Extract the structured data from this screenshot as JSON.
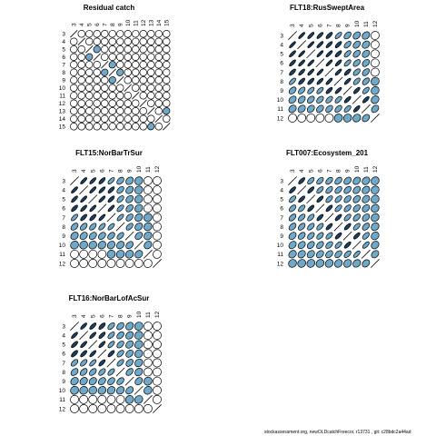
{
  "footer": "stockassessment.org,  newOLDcatchFreecor,  r13731 ,  git:  c28bdc2a44ad",
  "colors": {
    "positive": "#6fa8c8",
    "negative": "#1f3f5f",
    "outline": "#000000",
    "empty": "#ffffff"
  },
  "chart_data": [
    {
      "type": "heatmap",
      "title": "Residual catch",
      "ages": [
        "3",
        "4",
        "5",
        "6",
        "7",
        "8",
        "9",
        "10",
        "11",
        "12",
        "13",
        "14",
        "15"
      ],
      "correlations": [
        [
          1,
          0.05,
          0.08,
          0.06,
          0.04,
          0.08,
          0.1,
          0.05,
          0.1,
          0.05,
          0.05,
          0.1,
          0.05
        ],
        [
          0.05,
          1,
          0.05,
          0.05,
          0.05,
          0.05,
          0.1,
          0.05,
          0.1,
          0.05,
          0.05,
          0.05,
          0.05
        ],
        [
          0.08,
          0.05,
          1,
          0.15,
          0.08,
          0.05,
          0.05,
          0.05,
          0.05,
          0.1,
          0.05,
          0.05,
          0.05
        ],
        [
          0.06,
          0.05,
          0.15,
          1,
          0.05,
          0.05,
          0.05,
          0.05,
          0.05,
          0.05,
          0.1,
          0.05,
          0.05
        ],
        [
          0.04,
          0.05,
          0.08,
          0.05,
          1,
          0.15,
          0.05,
          0.05,
          0.05,
          0.05,
          0.05,
          0.05,
          0.05
        ],
        [
          0.08,
          0.05,
          0.05,
          0.05,
          0.15,
          1,
          0.15,
          0.05,
          0.05,
          0.05,
          0.05,
          0.05,
          0.1
        ],
        [
          0.1,
          0.1,
          0.05,
          0.05,
          0.05,
          0.15,
          1,
          0.05,
          0.05,
          0.05,
          0.05,
          0.05,
          0.05
        ],
        [
          0.05,
          0.05,
          0.05,
          0.05,
          0.05,
          0.05,
          0.05,
          1,
          0.05,
          0.05,
          0.05,
          0.1,
          0.05
        ],
        [
          0.1,
          0.1,
          0.05,
          0.05,
          0.05,
          0.05,
          0.05,
          0.05,
          1,
          0.05,
          0.05,
          0.05,
          0.05
        ],
        [
          0.05,
          0.05,
          0.1,
          0.05,
          0.05,
          0.05,
          0.05,
          0.05,
          0.05,
          1,
          0.05,
          0.05,
          0.05
        ],
        [
          0.05,
          0.05,
          0.05,
          0.1,
          0.05,
          0.05,
          0.05,
          0.05,
          0.05,
          0.05,
          1,
          0.05,
          0.15
        ],
        [
          0.1,
          0.05,
          0.05,
          0.05,
          0.05,
          0.05,
          0.05,
          0.1,
          0.05,
          0.05,
          0.05,
          1,
          0.05
        ],
        [
          0.05,
          0.05,
          0.05,
          0.05,
          0.05,
          0.1,
          0.05,
          0.05,
          0.05,
          0.05,
          0.15,
          0.05,
          1
        ]
      ]
    },
    {
      "type": "heatmap",
      "title": "FLT18:RusSweptArea",
      "ages": [
        "3",
        "4",
        "5",
        "6",
        "7",
        "8",
        "9",
        "10",
        "11",
        "12"
      ],
      "correlations": [
        [
          1,
          0.92,
          0.9,
          0.88,
          0.85,
          0.8,
          0.6,
          0.5,
          0.4,
          0.1
        ],
        [
          0.92,
          1,
          0.92,
          0.9,
          0.88,
          0.85,
          0.7,
          0.55,
          0.45,
          0.1
        ],
        [
          0.9,
          0.92,
          1,
          0.92,
          0.9,
          0.85,
          0.75,
          0.6,
          0.5,
          0.1
        ],
        [
          0.88,
          0.9,
          0.92,
          1,
          0.92,
          0.88,
          0.8,
          0.65,
          0.55,
          0.1
        ],
        [
          0.85,
          0.88,
          0.9,
          0.92,
          1,
          0.9,
          0.85,
          0.7,
          0.6,
          0.1
        ],
        [
          0.8,
          0.85,
          0.85,
          0.88,
          0.9,
          1,
          0.88,
          0.75,
          0.65,
          0.15
        ],
        [
          0.6,
          0.7,
          0.75,
          0.8,
          0.85,
          0.88,
          1,
          0.85,
          0.75,
          0.2
        ],
        [
          0.5,
          0.55,
          0.6,
          0.65,
          0.7,
          0.75,
          0.85,
          1,
          0.85,
          0.3
        ],
        [
          0.4,
          0.45,
          0.5,
          0.55,
          0.6,
          0.65,
          0.75,
          0.85,
          1,
          0.5
        ],
        [
          0.1,
          0.1,
          0.1,
          0.1,
          0.1,
          0.15,
          0.2,
          0.3,
          0.5,
          1
        ]
      ]
    },
    {
      "type": "heatmap",
      "title": "FLT15:NorBarTrSur",
      "ages": [
        "3",
        "4",
        "5",
        "6",
        "7",
        "8",
        "9",
        "10",
        "11",
        "12"
      ],
      "correlations": [
        [
          1,
          0.9,
          0.88,
          0.85,
          0.8,
          0.6,
          0.4,
          0.2,
          0.1,
          0.05
        ],
        [
          0.9,
          1,
          0.9,
          0.88,
          0.85,
          0.65,
          0.45,
          0.2,
          0.1,
          0.05
        ],
        [
          0.88,
          0.9,
          1,
          0.9,
          0.85,
          0.7,
          0.5,
          0.25,
          0.1,
          0.05
        ],
        [
          0.85,
          0.88,
          0.9,
          1,
          0.9,
          0.75,
          0.55,
          0.3,
          0.1,
          0.05
        ],
        [
          0.8,
          0.85,
          0.85,
          0.9,
          1,
          0.8,
          0.6,
          0.35,
          0.15,
          0.05
        ],
        [
          0.6,
          0.65,
          0.7,
          0.75,
          0.8,
          1,
          0.7,
          0.4,
          0.2,
          0.05
        ],
        [
          0.4,
          0.45,
          0.5,
          0.55,
          0.6,
          0.7,
          1,
          0.5,
          0.25,
          0.05
        ],
        [
          0.2,
          0.2,
          0.25,
          0.3,
          0.35,
          0.4,
          0.5,
          1,
          0.35,
          0.1
        ],
        [
          0.1,
          0.1,
          0.1,
          0.1,
          0.15,
          0.2,
          0.25,
          0.35,
          1,
          0.1
        ],
        [
          0.05,
          0.05,
          0.05,
          0.05,
          0.05,
          0.05,
          0.05,
          0.1,
          0.1,
          1
        ]
      ]
    },
    {
      "type": "heatmap",
      "title": "FLT007:Ecosystem_201",
      "ages": [
        "3",
        "4",
        "5",
        "6",
        "7",
        "8",
        "9",
        "10",
        "11",
        "12"
      ],
      "correlations": [
        [
          1,
          0.85,
          0.75,
          0.7,
          0.65,
          0.6,
          0.5,
          0.45,
          0.35,
          0.2
        ],
        [
          0.85,
          1,
          0.85,
          0.75,
          0.7,
          0.65,
          0.6,
          0.5,
          0.4,
          0.2
        ],
        [
          0.75,
          0.85,
          1,
          0.85,
          0.75,
          0.7,
          0.65,
          0.55,
          0.45,
          0.2
        ],
        [
          0.7,
          0.75,
          0.85,
          1,
          0.85,
          0.75,
          0.7,
          0.6,
          0.5,
          0.25
        ],
        [
          0.65,
          0.7,
          0.75,
          0.85,
          1,
          0.85,
          0.75,
          0.65,
          0.55,
          0.25
        ],
        [
          0.6,
          0.65,
          0.7,
          0.75,
          0.85,
          1,
          0.85,
          0.75,
          0.6,
          0.3
        ],
        [
          0.5,
          0.6,
          0.65,
          0.7,
          0.75,
          0.85,
          1,
          0.85,
          0.7,
          0.3
        ],
        [
          0.45,
          0.5,
          0.55,
          0.6,
          0.65,
          0.75,
          0.85,
          1,
          0.8,
          0.35
        ],
        [
          0.35,
          0.4,
          0.45,
          0.5,
          0.55,
          0.6,
          0.7,
          0.8,
          1,
          0.45
        ],
        [
          0.2,
          0.2,
          0.2,
          0.25,
          0.25,
          0.3,
          0.3,
          0.35,
          0.45,
          1
        ]
      ]
    },
    {
      "type": "heatmap",
      "title": "FLT16:NorBarLofAcSur",
      "ages": [
        "3",
        "4",
        "5",
        "6",
        "7",
        "8",
        "9",
        "10",
        "11",
        "12"
      ],
      "correlations": [
        [
          1,
          0.88,
          0.85,
          0.82,
          0.7,
          0.55,
          0.35,
          0.15,
          0.05,
          0.05
        ],
        [
          0.88,
          1,
          0.88,
          0.85,
          0.75,
          0.6,
          0.4,
          0.2,
          0.05,
          0.05
        ],
        [
          0.85,
          0.88,
          1,
          0.88,
          0.8,
          0.65,
          0.45,
          0.2,
          0.05,
          0.05
        ],
        [
          0.82,
          0.85,
          0.88,
          1,
          0.85,
          0.7,
          0.5,
          0.25,
          0.05,
          0.05
        ],
        [
          0.7,
          0.75,
          0.8,
          0.85,
          1,
          0.75,
          0.55,
          0.3,
          0.1,
          0.05
        ],
        [
          0.55,
          0.6,
          0.65,
          0.7,
          0.75,
          1,
          0.6,
          0.35,
          0.1,
          0.05
        ],
        [
          0.35,
          0.4,
          0.45,
          0.5,
          0.55,
          0.6,
          1,
          0.45,
          0.15,
          0.05
        ],
        [
          0.15,
          0.2,
          0.2,
          0.25,
          0.3,
          0.35,
          0.45,
          1,
          0.2,
          0.05
        ],
        [
          0.05,
          0.05,
          0.05,
          0.05,
          0.1,
          0.1,
          0.15,
          0.2,
          1,
          0.05
        ],
        [
          0.05,
          0.05,
          0.05,
          0.05,
          0.05,
          0.05,
          0.05,
          0.05,
          0.05,
          1
        ]
      ]
    }
  ]
}
